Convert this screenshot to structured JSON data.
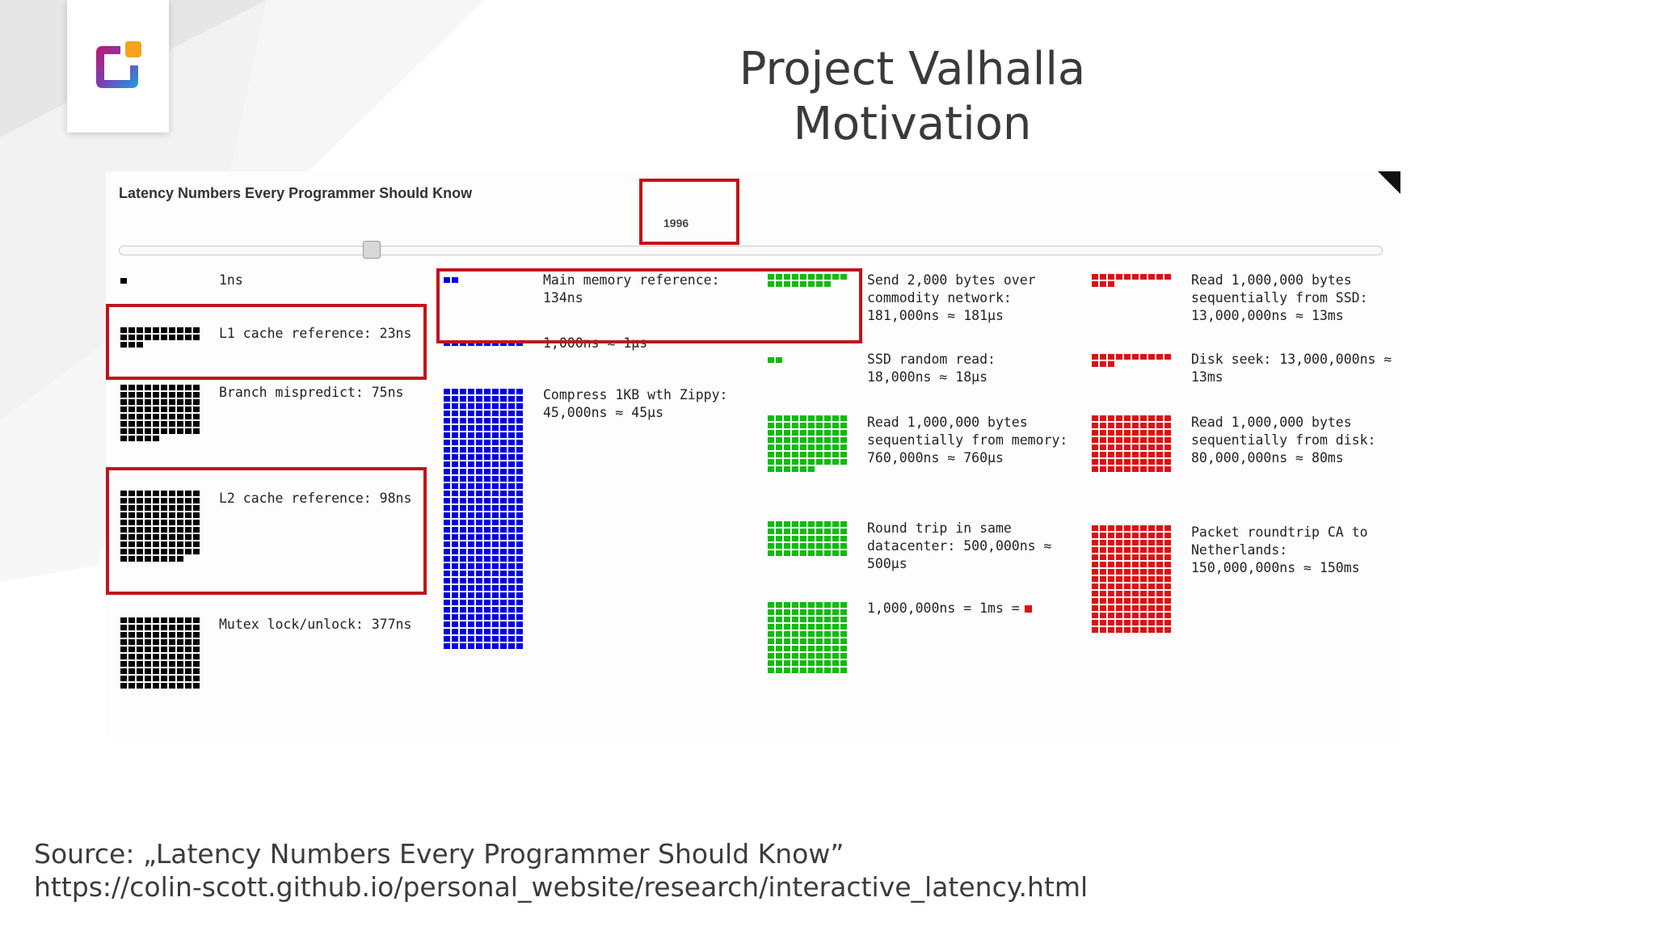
{
  "slide": {
    "title_line1": "Project Valhalla",
    "title_line2": "Motivation",
    "source_line1": "Source: „Latency Numbers Every Programmer Should Know”",
    "source_line2": "https://colin-scott.github.io/personal_website/research/interactive_latency.html"
  },
  "colors": {
    "black": "#000000",
    "blue": "#0000e0",
    "green": "#11bb11",
    "red": "#e01010",
    "highlight": "#c0141c",
    "title": "#3a3a3a"
  },
  "screenshot": {
    "title": "Latency Numbers Every Programmer Should Know",
    "year": "1996",
    "slider_level": 0.2
  },
  "latency": {
    "col1": [
      {
        "label": "1ns",
        "squares": 1
      },
      {
        "label": "L1 cache reference: 23ns",
        "squares": 23
      },
      {
        "label": "Branch mispredict: 75ns",
        "squares": 75
      },
      {
        "label": "L2 cache reference: 98ns",
        "squares": 98
      },
      {
        "label": "Mutex lock/unlock: 377ns",
        "squares": 100
      }
    ],
    "col2": [
      {
        "label": "Main memory reference:\n134ns",
        "squares": 2
      },
      {
        "label": "1,000ns ≈ 1µs",
        "squares": 10
      },
      {
        "label": "Compress 1KB wth Zippy:\n45,000ns ≈ 45µs",
        "squares": 360
      }
    ],
    "col3": [
      {
        "label": "Send 2,000 bytes over\ncommodity network:\n181,000ns ≈ 181µs",
        "squares": 18
      },
      {
        "label": "SSD random read:\n18,000ns ≈ 18µs",
        "squares": 2
      },
      {
        "label": "Read 1,000,000 bytes\nsequentially from memory:\n760,000ns ≈ 760µs",
        "squares": 76
      },
      {
        "label": "Round trip in same\ndatacenter: 500,000ns ≈\n500µs",
        "squares": 50
      },
      {
        "label": "1,000,000ns = 1ms =",
        "squares": 100
      }
    ],
    "col4": [
      {
        "label": "Read 1,000,000 bytes\nsequentially from SSD:\n13,000,000ns ≈ 13ms",
        "squares": 13
      },
      {
        "label": "Disk seek: 13,000,000ns ≈\n13ms",
        "squares": 13
      },
      {
        "label": "Read 1,000,000 bytes\nsequentially from disk:\n80,000,000ns ≈ 80ms",
        "squares": 80
      },
      {
        "label": "Packet roundtrip CA to\nNetherlands:\n150,000,000ns ≈ 150ms",
        "squares": 150
      }
    ]
  }
}
